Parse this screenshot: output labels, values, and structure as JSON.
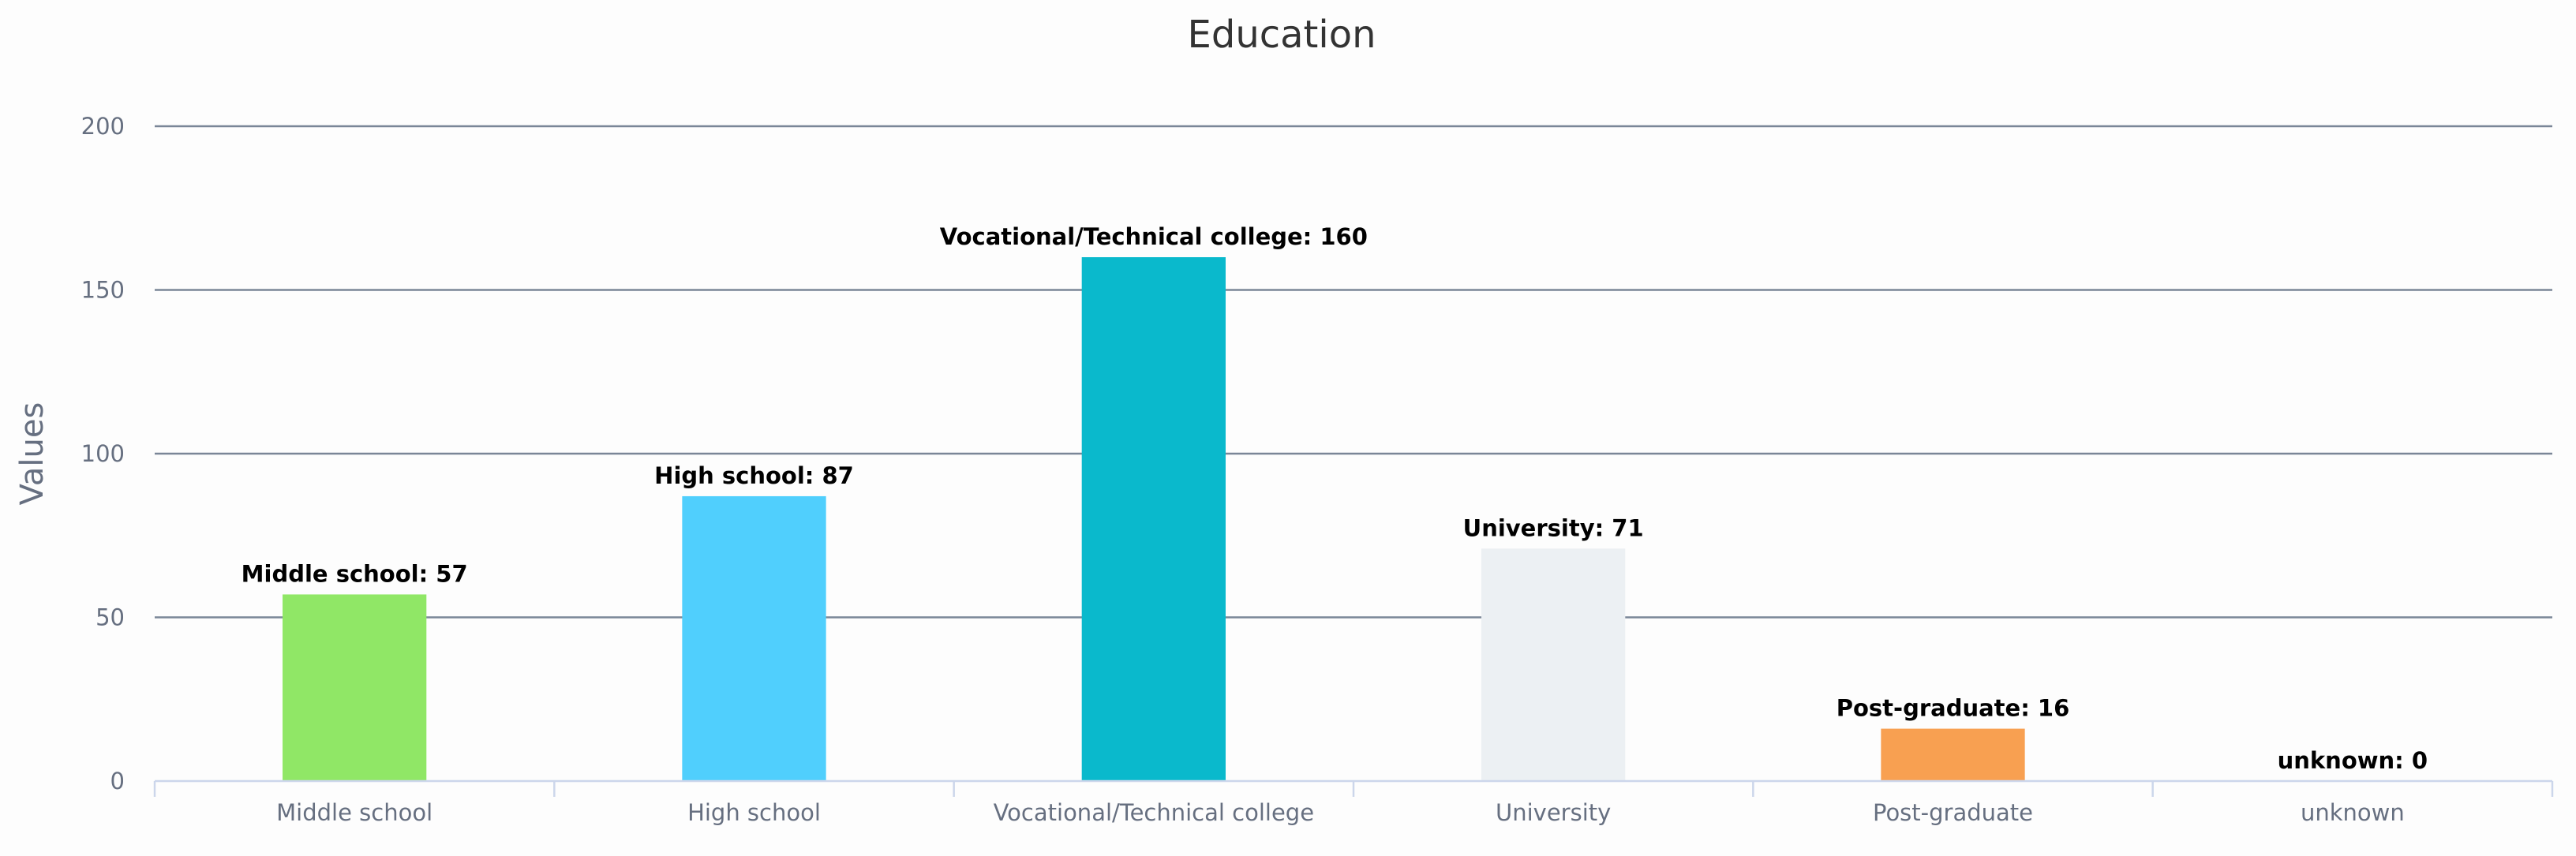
{
  "chart_data": {
    "type": "bar",
    "title": "Education",
    "xlabel": "",
    "ylabel": "Values",
    "ylim": [
      0,
      200
    ],
    "yticks": [
      0,
      50,
      100,
      150,
      200
    ],
    "grid": true,
    "legend": "none",
    "categories": [
      "Middle school",
      "High school",
      "Vocational/Technical college",
      "University",
      "Post-graduate",
      "unknown"
    ],
    "values": [
      57,
      87,
      160,
      71,
      16,
      0
    ],
    "data_labels": [
      "Middle school: 57",
      "High school: 87",
      "Vocational/Technical college: 160",
      "University: 71",
      "Post-graduate: 16",
      "unknown: 0"
    ],
    "colors": [
      "#90e766",
      "#50cffd",
      "#0ab9cc",
      "#ecf0f3",
      "#f8a051",
      "#aaaaaa"
    ]
  }
}
